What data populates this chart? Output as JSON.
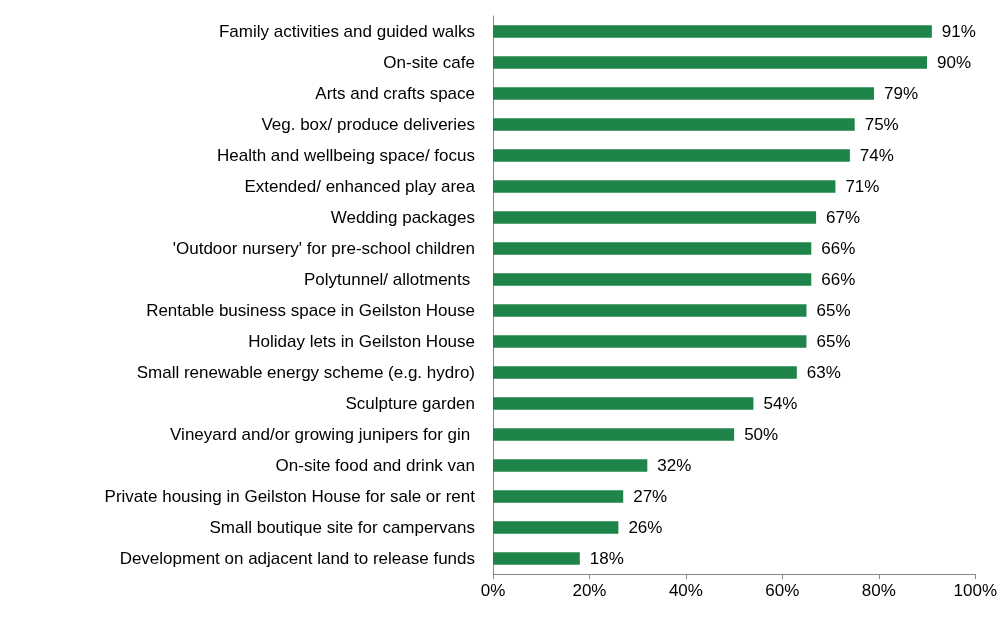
{
  "chart_data": {
    "type": "bar",
    "orientation": "horizontal",
    "categories": [
      "Family activities and guided walks",
      "On-site cafe",
      "Arts and crafts space",
      "Veg. box/ produce deliveries",
      "Health and wellbeing space/ focus",
      "Extended/ enhanced play area",
      "Wedding packages",
      "'Outdoor nursery' for pre-school children",
      "Polytunnel/ allotments ",
      "Rentable business space in Geilston House",
      "Holiday lets in Geilston House",
      "Small renewable energy scheme (e.g. hydro)",
      "Sculpture garden",
      "Vineyard and/or growing junipers for gin ",
      "On-site food and drink van",
      "Private housing in Geilston House for sale or rent",
      "Small boutique site for campervans",
      "Development on adjacent land to release funds"
    ],
    "values": [
      91,
      90,
      79,
      75,
      74,
      71,
      67,
      66,
      66,
      65,
      65,
      63,
      54,
      50,
      32,
      27,
      26,
      18
    ],
    "value_labels": [
      "91%",
      "90%",
      "79%",
      "75%",
      "74%",
      "71%",
      "67%",
      "66%",
      "66%",
      "65%",
      "65%",
      "63%",
      "54%",
      "50%",
      "32%",
      "27%",
      "26%",
      "18%"
    ],
    "color": "#1e8449",
    "xlim": [
      0,
      100
    ],
    "xticks": [
      {
        "value": 0,
        "label": "0%"
      },
      {
        "value": 20,
        "label": "20%"
      },
      {
        "value": 40,
        "label": "40%"
      },
      {
        "value": 60,
        "label": "60%"
      },
      {
        "value": 80,
        "label": "80%"
      },
      {
        "value": 100,
        "label": "100%"
      }
    ],
    "grid": false
  }
}
